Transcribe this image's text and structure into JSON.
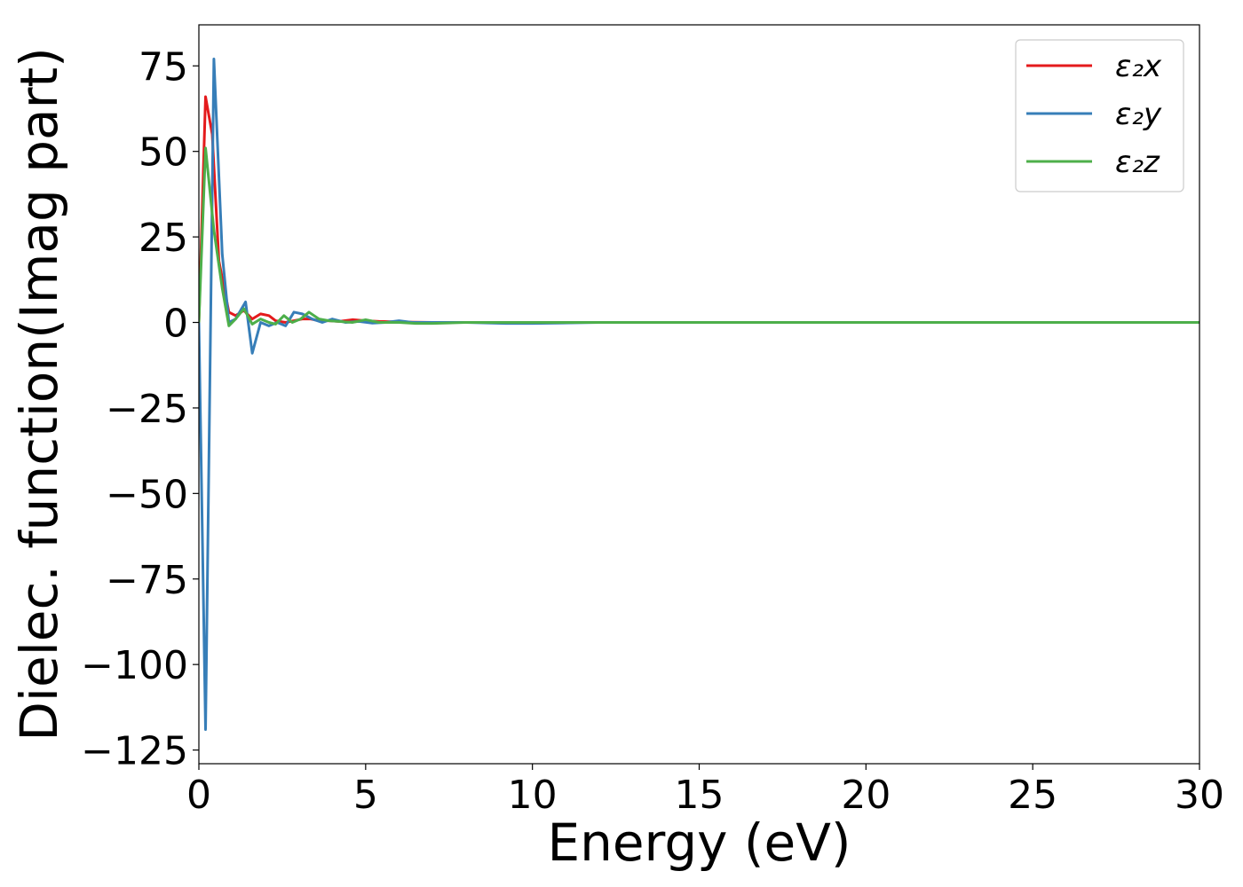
{
  "chart_data": {
    "type": "line",
    "title": "",
    "xlabel": "Energy (eV)",
    "ylabel": "Dielec. function(Imag part)",
    "xlim": [
      0,
      30
    ],
    "ylim": [
      -129,
      87
    ],
    "xticks": [
      0,
      5,
      10,
      15,
      20,
      25,
      30
    ],
    "xtick_labels": [
      "0",
      "5",
      "10",
      "15",
      "20",
      "25",
      "30"
    ],
    "yticks": [
      75,
      50,
      25,
      0,
      -25,
      -50,
      -75,
      -100,
      -125
    ],
    "ytick_labels": [
      "75",
      "50",
      "25",
      "0",
      "−25",
      "−50",
      "−75",
      "−100",
      "−125"
    ],
    "grid": false,
    "legend_position": "top-right",
    "series": [
      {
        "name": "ε₂x",
        "color": "#e41a1c",
        "x": [
          0,
          0.2,
          0.4,
          0.6,
          0.9,
          1.1,
          1.35,
          1.6,
          1.85,
          2.1,
          2.3,
          2.6,
          2.85,
          3.1,
          3.35,
          3.6,
          3.9,
          4.2,
          4.6,
          5.0,
          5.4,
          5.8,
          6.2,
          7,
          8,
          9,
          10,
          12,
          14,
          16,
          20,
          25,
          30
        ],
        "y": [
          0,
          66,
          55,
          18,
          3,
          2,
          3.5,
          1,
          2.5,
          2,
          0.5,
          0,
          0.5,
          1,
          1,
          0.5,
          0.5,
          0.3,
          0.8,
          0.5,
          0.3,
          0.2,
          0.1,
          0,
          0,
          0,
          0,
          0,
          0,
          0,
          0,
          0,
          0
        ]
      },
      {
        "name": "ε₂y",
        "color": "#377eb8",
        "x": [
          0,
          0.2,
          0.45,
          0.7,
          0.9,
          1.1,
          1.4,
          1.6,
          1.85,
          2.1,
          2.35,
          2.6,
          2.85,
          3.1,
          3.4,
          3.7,
          4.0,
          4.4,
          4.8,
          5.2,
          5.6,
          6.0,
          6.4,
          7,
          8,
          9.2,
          10,
          12,
          14,
          16,
          20,
          25,
          30
        ],
        "y": [
          0,
          -119,
          77,
          20,
          0,
          1,
          6,
          -9,
          0,
          -1,
          0,
          -1,
          3,
          2.5,
          1,
          0,
          1,
          0,
          0.3,
          -0.2,
          0,
          0.5,
          0,
          0,
          0,
          -0.3,
          -0.3,
          0,
          0,
          0,
          0,
          0,
          0
        ]
      },
      {
        "name": "ε₂z",
        "color": "#4daf4a",
        "x": [
          0,
          0.2,
          0.45,
          0.7,
          0.9,
          1.1,
          1.35,
          1.6,
          1.85,
          2.1,
          2.3,
          2.55,
          2.8,
          3.05,
          3.3,
          3.6,
          3.9,
          4.2,
          4.6,
          5.0,
          5.4,
          6.0,
          6.5,
          7,
          8,
          9,
          10,
          12,
          14,
          16,
          20,
          25,
          30
        ],
        "y": [
          0,
          51,
          27,
          10,
          -1,
          1,
          4,
          -0.5,
          1,
          0,
          -0.5,
          2,
          0,
          1,
          3,
          1,
          0.5,
          0.3,
          0,
          0.8,
          0,
          0,
          -0.3,
          -0.3,
          0,
          0,
          0,
          0,
          0,
          0,
          0,
          0,
          0
        ]
      }
    ]
  }
}
